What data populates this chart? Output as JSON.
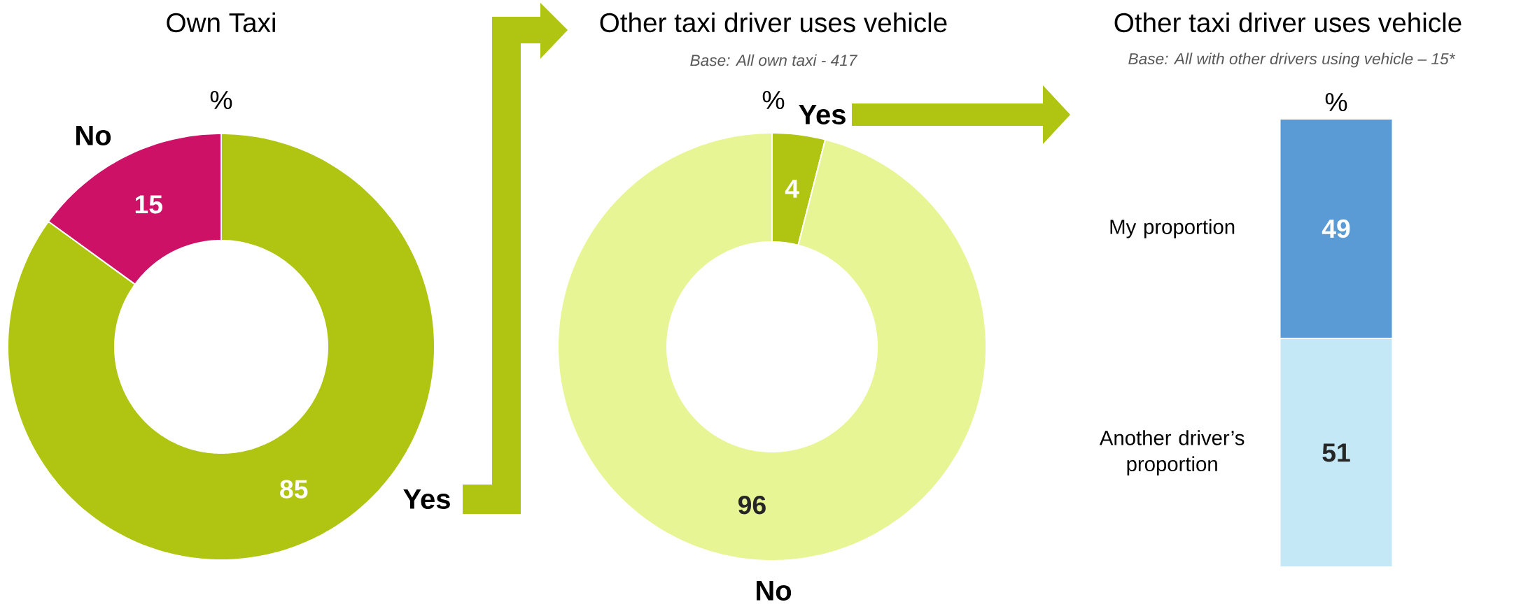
{
  "chart_data": [
    {
      "type": "donut",
      "title": "Own Taxi",
      "categories": [
        "Yes",
        "No"
      ],
      "values": [
        85,
        15
      ],
      "colors": [
        "#b0c412",
        "#cc1166"
      ],
      "data_labels": true,
      "annotations": [
        "%"
      ]
    },
    {
      "type": "donut",
      "title": "Other taxi driver uses vehicle",
      "subtitle": "Base:  All own taxi - 417",
      "categories": [
        "Yes",
        "No"
      ],
      "values": [
        4,
        96
      ],
      "colors": [
        "#b0c412",
        "#e8f595"
      ],
      "data_labels": true,
      "annotations": [
        "%"
      ]
    },
    {
      "type": "bar",
      "title": "Other taxi driver uses vehicle",
      "subtitle": "Base:  All with other drivers using vehicle – 15*",
      "categories": [
        null
      ],
      "stacked": true,
      "data_labels": true,
      "annotations": [
        "%"
      ],
      "series": [
        {
          "name": "Another driver’s proportion",
          "color": "#c5e8f7",
          "values": [
            51
          ]
        },
        {
          "name": "My proportion",
          "color": "#5b9bd5",
          "values": [
            49
          ]
        }
      ]
    }
  ]
}
